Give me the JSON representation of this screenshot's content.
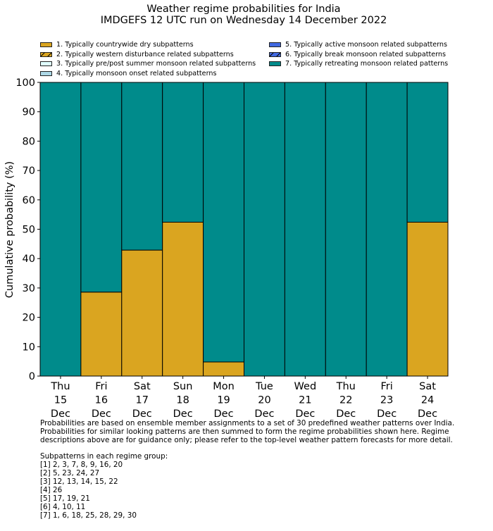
{
  "chart_data": {
    "type": "bar",
    "stacked": true,
    "title": "Weather regime probabilities for India",
    "subtitle": "IMDGEFS 12 UTC run on Wednesday 14 December 2022",
    "ylabel": "Cumulative probability (%)",
    "xlabel": "",
    "ylim": [
      0,
      100
    ],
    "yticks": [
      0,
      10,
      20,
      30,
      40,
      50,
      60,
      70,
      80,
      90,
      100
    ],
    "grid": false,
    "legend_position": "top",
    "categories": [
      [
        "Thu",
        "15",
        "Dec"
      ],
      [
        "Fri",
        "16",
        "Dec"
      ],
      [
        "Sat",
        "17",
        "Dec"
      ],
      [
        "Sun",
        "18",
        "Dec"
      ],
      [
        "Mon",
        "19",
        "Dec"
      ],
      [
        "Tue",
        "20",
        "Dec"
      ],
      [
        "Wed",
        "21",
        "Dec"
      ],
      [
        "Thu",
        "22",
        "Dec"
      ],
      [
        "Fri",
        "23",
        "Dec"
      ],
      [
        "Sat",
        "24",
        "Dec"
      ]
    ],
    "series": [
      {
        "name": "1. Typically countrywide dry subpatterns",
        "color": "#daa520",
        "hatch": false,
        "values": [
          0,
          28.6,
          42.9,
          52.4,
          4.8,
          0,
          0,
          0,
          0,
          52.4
        ]
      },
      {
        "name": "2. Typically western disturbance related subpatterns",
        "color": "#daa520",
        "hatch": true,
        "values": [
          0,
          0,
          0,
          0,
          0,
          0,
          0,
          0,
          0,
          0
        ]
      },
      {
        "name": "3. Typically pre/post summer monsoon related subpatterns",
        "color": "#e0ffff",
        "hatch": false,
        "values": [
          0,
          0,
          0,
          0,
          0,
          0,
          0,
          0,
          0,
          0
        ]
      },
      {
        "name": "4. Typically monsoon onset related subpatterns",
        "color": "#add8e6",
        "hatch": false,
        "values": [
          0,
          0,
          0,
          0,
          0,
          0,
          0,
          0,
          0,
          0
        ]
      },
      {
        "name": "5. Typically active monsoon related subpatterns",
        "color": "#4169e1",
        "hatch": false,
        "values": [
          0,
          0,
          0,
          0,
          0,
          0,
          0,
          0,
          0,
          0
        ]
      },
      {
        "name": "6. Typically break monsoon related subpatterns",
        "color": "#4169e1",
        "hatch": true,
        "values": [
          0,
          0,
          0,
          0,
          0,
          0,
          0,
          0,
          0,
          0
        ]
      },
      {
        "name": "7. Typically retreating monsoon related patterns",
        "color": "#008b8b",
        "hatch": false,
        "values": [
          100,
          71.4,
          57.1,
          47.6,
          95.2,
          100,
          100,
          100,
          100,
          47.6
        ]
      }
    ]
  },
  "footer": {
    "notes": [
      "Probabilities are based on ensemble member assignments to a set of 30 predefined weather patterns over India.",
      "Probabilities for similar looking patterns are then summed to form the regime probabilities shown here. Regime",
      "descriptions above are for guidance only; please refer to the top-level weather pattern forecasts for more detail."
    ],
    "groups_heading": "Subpatterns in each regime group:",
    "groups": [
      "[1] 2, 3, 7, 8, 9, 16, 20",
      "[2] 5, 23, 24, 27",
      "[3] 12, 13, 14, 15, 22",
      "[4] 26",
      "[5] 17, 19, 21",
      "[6] 4, 10, 11",
      "[7] 1, 6, 18, 25, 28, 29, 30"
    ]
  }
}
